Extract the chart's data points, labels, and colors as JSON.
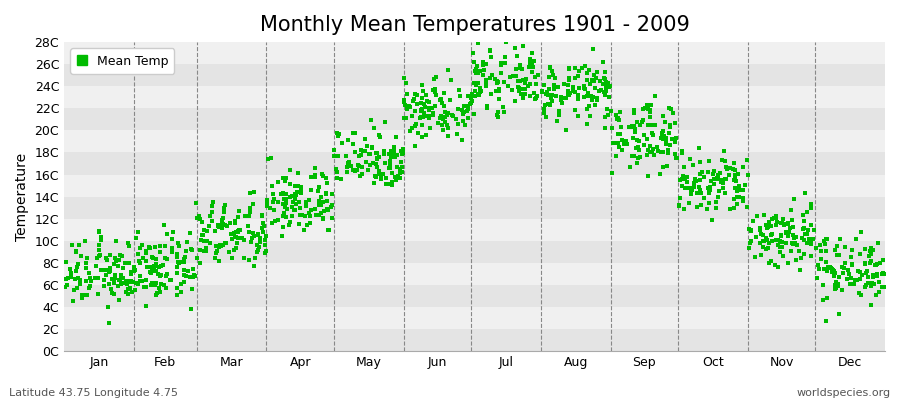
{
  "title": "Monthly Mean Temperatures 1901 - 2009",
  "ylabel": "Temperature",
  "footer_left": "Latitude 43.75 Longitude 4.75",
  "footer_right": "worldspecies.org",
  "legend_label": "Mean Temp",
  "dot_color": "#00BB00",
  "bg_color": "#FFFFFF",
  "plot_bg_color": "#F0F0F0",
  "alt_band_color": "#E4E4E4",
  "grid_color": "#FFFFFF",
  "vline_color": "#888888",
  "ylim": [
    0,
    28
  ],
  "yticks": [
    0,
    2,
    4,
    6,
    8,
    10,
    12,
    14,
    16,
    18,
    20,
    22,
    24,
    26,
    28
  ],
  "ytick_labels": [
    "0C",
    "2C",
    "4C",
    "6C",
    "8C",
    "10C",
    "12C",
    "14C",
    "16C",
    "18C",
    "20C",
    "22C",
    "24C",
    "26C",
    "28C"
  ],
  "months": [
    "Jan",
    "Feb",
    "Mar",
    "Apr",
    "May",
    "Jun",
    "Jul",
    "Aug",
    "Sep",
    "Oct",
    "Nov",
    "Dec"
  ],
  "days_per_month": [
    31,
    28,
    31,
    30,
    31,
    30,
    31,
    31,
    30,
    31,
    30,
    31
  ],
  "num_years": 109,
  "monthly_means": [
    7.0,
    7.5,
    10.5,
    13.5,
    17.5,
    22.0,
    24.5,
    23.5,
    19.5,
    15.0,
    10.5,
    7.5
  ],
  "monthly_stds": [
    1.5,
    1.5,
    1.5,
    1.5,
    1.4,
    1.4,
    1.3,
    1.3,
    1.5,
    1.5,
    1.5,
    1.5
  ],
  "dot_size": 5,
  "title_fontsize": 15,
  "axis_label_fontsize": 10,
  "tick_fontsize": 9,
  "legend_fontsize": 9,
  "footer_fontsize": 8
}
